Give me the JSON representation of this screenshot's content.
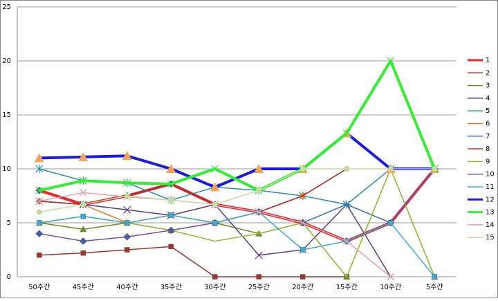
{
  "chart_data": {
    "type": "line",
    "categories": [
      "50주간",
      "45주간",
      "40주간",
      "35주간",
      "30주간",
      "25주간",
      "20주간",
      "15주간",
      "10주간",
      "5주간"
    ],
    "ylim": [
      0,
      25
    ],
    "yticks": [
      0,
      5,
      10,
      15,
      20,
      25
    ],
    "grid": true,
    "series": [
      {
        "name": "1",
        "color": "#e8262b",
        "width": 4,
        "marker": "diamond",
        "values": [
          8,
          6.7,
          7.5,
          8.6,
          6.7,
          6,
          5,
          3.3,
          5,
          10
        ]
      },
      {
        "name": "2",
        "color": "#a0342e",
        "width": 1.5,
        "marker": "square",
        "values": [
          2,
          2.2,
          2.5,
          2.8,
          0,
          0,
          0,
          0,
          null,
          null
        ]
      },
      {
        "name": "3",
        "color": "#6b8c2a",
        "width": 1.5,
        "marker": "triangle",
        "values": [
          5,
          4.4,
          5,
          4.3,
          5,
          4,
          5,
          0,
          10,
          0
        ]
      },
      {
        "name": "4",
        "color": "#5b3c88",
        "width": 1.5,
        "marker": "x",
        "values": [
          7,
          6.7,
          6.2,
          5.7,
          6.7,
          2,
          2.5,
          6.7,
          0,
          null
        ]
      },
      {
        "name": "5",
        "color": "#2a8ea6",
        "width": 1.5,
        "marker": "star",
        "values": [
          10,
          8.9,
          8.7,
          7.1,
          8.3,
          8,
          7.5,
          6.7,
          10,
          10
        ]
      },
      {
        "name": "6",
        "color": "#e07b2e",
        "width": 1.5,
        "marker": "circle",
        "values": [
          7,
          6.7,
          5,
          5.7,
          5,
          6,
          7.5,
          10,
          null,
          null
        ]
      },
      {
        "name": "7",
        "color": "#3d6fb0",
        "width": 1.5,
        "marker": "plus",
        "values": [
          7,
          6.7,
          7.5,
          8.6,
          6.7,
          6,
          5,
          6.7,
          5,
          10
        ]
      },
      {
        "name": "8",
        "color": "#b02a2a",
        "width": 1.5,
        "marker": "none",
        "values": [
          7,
          6.7,
          7.5,
          8.6,
          6.7,
          6,
          7.5,
          10,
          null,
          null
        ]
      },
      {
        "name": "9",
        "color": "#9bbb3c",
        "width": 1.5,
        "marker": "none",
        "values": [
          5,
          5.6,
          5,
          4.3,
          3.3,
          4,
          5,
          0,
          10,
          0
        ]
      },
      {
        "name": "10",
        "color": "#7b4fa6",
        "width": 1.5,
        "marker": "diamond",
        "values": [
          4,
          3.3,
          3.7,
          4.3,
          5,
          6,
          5,
          3.3,
          5,
          10
        ]
      },
      {
        "name": "11",
        "color": "#3cacd6",
        "width": 1.5,
        "marker": "square",
        "values": [
          5,
          5.6,
          5,
          5.7,
          5,
          6,
          2.5,
          3.3,
          5,
          0
        ]
      },
      {
        "name": "12",
        "color": "#1a1ae0",
        "width": 4,
        "marker": "triangle-orange",
        "values": [
          11,
          11.1,
          11.2,
          10,
          8.3,
          10,
          10,
          13.3,
          10,
          10
        ]
      },
      {
        "name": "13",
        "color": "#33ee33",
        "width": 4,
        "marker": "x",
        "values": [
          8,
          8.9,
          8.7,
          8.6,
          10,
          8,
          10,
          13.3,
          20,
          10
        ]
      },
      {
        "name": "14",
        "color": "#e8a0a8",
        "width": 1.5,
        "marker": "x",
        "values": [
          7,
          7.8,
          7.4,
          7.1,
          6.7,
          6,
          5,
          3.3,
          0,
          null
        ]
      },
      {
        "name": "15",
        "color": "#c3dca0",
        "width": 1.5,
        "marker": "circle",
        "values": [
          6,
          6.7,
          7.5,
          7.1,
          6.7,
          8,
          10,
          10,
          10,
          10
        ]
      }
    ]
  }
}
